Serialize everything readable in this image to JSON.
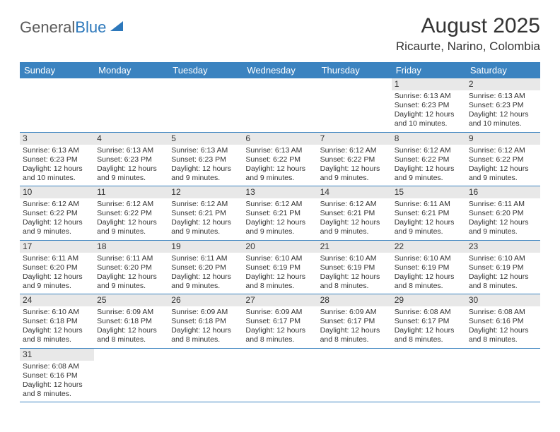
{
  "logo": {
    "part1": "General",
    "part2": "Blue"
  },
  "title": "August 2025",
  "location": "Ricaurte, Narino, Colombia",
  "colors": {
    "header_bg": "#3b83c0",
    "header_text": "#ffffff",
    "daynum_bg": "#e8e8e8",
    "row_border": "#3b83c0",
    "text": "#333333",
    "logo_gray": "#5a5a5a",
    "logo_blue": "#2d78bb"
  },
  "day_names": [
    "Sunday",
    "Monday",
    "Tuesday",
    "Wednesday",
    "Thursday",
    "Friday",
    "Saturday"
  ],
  "weeks": [
    [
      {
        "n": "",
        "sunrise": "",
        "sunset": "",
        "daylight": ""
      },
      {
        "n": "",
        "sunrise": "",
        "sunset": "",
        "daylight": ""
      },
      {
        "n": "",
        "sunrise": "",
        "sunset": "",
        "daylight": ""
      },
      {
        "n": "",
        "sunrise": "",
        "sunset": "",
        "daylight": ""
      },
      {
        "n": "",
        "sunrise": "",
        "sunset": "",
        "daylight": ""
      },
      {
        "n": "1",
        "sunrise": "Sunrise: 6:13 AM",
        "sunset": "Sunset: 6:23 PM",
        "daylight": "Daylight: 12 hours and 10 minutes."
      },
      {
        "n": "2",
        "sunrise": "Sunrise: 6:13 AM",
        "sunset": "Sunset: 6:23 PM",
        "daylight": "Daylight: 12 hours and 10 minutes."
      }
    ],
    [
      {
        "n": "3",
        "sunrise": "Sunrise: 6:13 AM",
        "sunset": "Sunset: 6:23 PM",
        "daylight": "Daylight: 12 hours and 10 minutes."
      },
      {
        "n": "4",
        "sunrise": "Sunrise: 6:13 AM",
        "sunset": "Sunset: 6:23 PM",
        "daylight": "Daylight: 12 hours and 9 minutes."
      },
      {
        "n": "5",
        "sunrise": "Sunrise: 6:13 AM",
        "sunset": "Sunset: 6:23 PM",
        "daylight": "Daylight: 12 hours and 9 minutes."
      },
      {
        "n": "6",
        "sunrise": "Sunrise: 6:13 AM",
        "sunset": "Sunset: 6:22 PM",
        "daylight": "Daylight: 12 hours and 9 minutes."
      },
      {
        "n": "7",
        "sunrise": "Sunrise: 6:12 AM",
        "sunset": "Sunset: 6:22 PM",
        "daylight": "Daylight: 12 hours and 9 minutes."
      },
      {
        "n": "8",
        "sunrise": "Sunrise: 6:12 AM",
        "sunset": "Sunset: 6:22 PM",
        "daylight": "Daylight: 12 hours and 9 minutes."
      },
      {
        "n": "9",
        "sunrise": "Sunrise: 6:12 AM",
        "sunset": "Sunset: 6:22 PM",
        "daylight": "Daylight: 12 hours and 9 minutes."
      }
    ],
    [
      {
        "n": "10",
        "sunrise": "Sunrise: 6:12 AM",
        "sunset": "Sunset: 6:22 PM",
        "daylight": "Daylight: 12 hours and 9 minutes."
      },
      {
        "n": "11",
        "sunrise": "Sunrise: 6:12 AM",
        "sunset": "Sunset: 6:22 PM",
        "daylight": "Daylight: 12 hours and 9 minutes."
      },
      {
        "n": "12",
        "sunrise": "Sunrise: 6:12 AM",
        "sunset": "Sunset: 6:21 PM",
        "daylight": "Daylight: 12 hours and 9 minutes."
      },
      {
        "n": "13",
        "sunrise": "Sunrise: 6:12 AM",
        "sunset": "Sunset: 6:21 PM",
        "daylight": "Daylight: 12 hours and 9 minutes."
      },
      {
        "n": "14",
        "sunrise": "Sunrise: 6:12 AM",
        "sunset": "Sunset: 6:21 PM",
        "daylight": "Daylight: 12 hours and 9 minutes."
      },
      {
        "n": "15",
        "sunrise": "Sunrise: 6:11 AM",
        "sunset": "Sunset: 6:21 PM",
        "daylight": "Daylight: 12 hours and 9 minutes."
      },
      {
        "n": "16",
        "sunrise": "Sunrise: 6:11 AM",
        "sunset": "Sunset: 6:20 PM",
        "daylight": "Daylight: 12 hours and 9 minutes."
      }
    ],
    [
      {
        "n": "17",
        "sunrise": "Sunrise: 6:11 AM",
        "sunset": "Sunset: 6:20 PM",
        "daylight": "Daylight: 12 hours and 9 minutes."
      },
      {
        "n": "18",
        "sunrise": "Sunrise: 6:11 AM",
        "sunset": "Sunset: 6:20 PM",
        "daylight": "Daylight: 12 hours and 9 minutes."
      },
      {
        "n": "19",
        "sunrise": "Sunrise: 6:11 AM",
        "sunset": "Sunset: 6:20 PM",
        "daylight": "Daylight: 12 hours and 9 minutes."
      },
      {
        "n": "20",
        "sunrise": "Sunrise: 6:10 AM",
        "sunset": "Sunset: 6:19 PM",
        "daylight": "Daylight: 12 hours and 8 minutes."
      },
      {
        "n": "21",
        "sunrise": "Sunrise: 6:10 AM",
        "sunset": "Sunset: 6:19 PM",
        "daylight": "Daylight: 12 hours and 8 minutes."
      },
      {
        "n": "22",
        "sunrise": "Sunrise: 6:10 AM",
        "sunset": "Sunset: 6:19 PM",
        "daylight": "Daylight: 12 hours and 8 minutes."
      },
      {
        "n": "23",
        "sunrise": "Sunrise: 6:10 AM",
        "sunset": "Sunset: 6:19 PM",
        "daylight": "Daylight: 12 hours and 8 minutes."
      }
    ],
    [
      {
        "n": "24",
        "sunrise": "Sunrise: 6:10 AM",
        "sunset": "Sunset: 6:18 PM",
        "daylight": "Daylight: 12 hours and 8 minutes."
      },
      {
        "n": "25",
        "sunrise": "Sunrise: 6:09 AM",
        "sunset": "Sunset: 6:18 PM",
        "daylight": "Daylight: 12 hours and 8 minutes."
      },
      {
        "n": "26",
        "sunrise": "Sunrise: 6:09 AM",
        "sunset": "Sunset: 6:18 PM",
        "daylight": "Daylight: 12 hours and 8 minutes."
      },
      {
        "n": "27",
        "sunrise": "Sunrise: 6:09 AM",
        "sunset": "Sunset: 6:17 PM",
        "daylight": "Daylight: 12 hours and 8 minutes."
      },
      {
        "n": "28",
        "sunrise": "Sunrise: 6:09 AM",
        "sunset": "Sunset: 6:17 PM",
        "daylight": "Daylight: 12 hours and 8 minutes."
      },
      {
        "n": "29",
        "sunrise": "Sunrise: 6:08 AM",
        "sunset": "Sunset: 6:17 PM",
        "daylight": "Daylight: 12 hours and 8 minutes."
      },
      {
        "n": "30",
        "sunrise": "Sunrise: 6:08 AM",
        "sunset": "Sunset: 6:16 PM",
        "daylight": "Daylight: 12 hours and 8 minutes."
      }
    ],
    [
      {
        "n": "31",
        "sunrise": "Sunrise: 6:08 AM",
        "sunset": "Sunset: 6:16 PM",
        "daylight": "Daylight: 12 hours and 8 minutes."
      },
      {
        "n": "",
        "sunrise": "",
        "sunset": "",
        "daylight": ""
      },
      {
        "n": "",
        "sunrise": "",
        "sunset": "",
        "daylight": ""
      },
      {
        "n": "",
        "sunrise": "",
        "sunset": "",
        "daylight": ""
      },
      {
        "n": "",
        "sunrise": "",
        "sunset": "",
        "daylight": ""
      },
      {
        "n": "",
        "sunrise": "",
        "sunset": "",
        "daylight": ""
      },
      {
        "n": "",
        "sunrise": "",
        "sunset": "",
        "daylight": ""
      }
    ]
  ]
}
